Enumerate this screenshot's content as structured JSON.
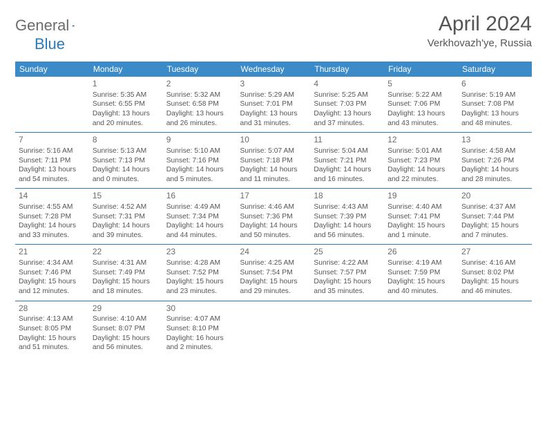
{
  "logo": {
    "text1": "General",
    "text2": "Blue"
  },
  "title": "April 2024",
  "location": "Verkhovazh'ye, Russia",
  "header_bg": "#3b8bc9",
  "divider_color": "#2a7ab8",
  "dow": [
    "Sunday",
    "Monday",
    "Tuesday",
    "Wednesday",
    "Thursday",
    "Friday",
    "Saturday"
  ],
  "weeks": [
    [
      {
        "n": "",
        "l": []
      },
      {
        "n": "1",
        "l": [
          "Sunrise: 5:35 AM",
          "Sunset: 6:55 PM",
          "Daylight: 13 hours",
          "and 20 minutes."
        ]
      },
      {
        "n": "2",
        "l": [
          "Sunrise: 5:32 AM",
          "Sunset: 6:58 PM",
          "Daylight: 13 hours",
          "and 26 minutes."
        ]
      },
      {
        "n": "3",
        "l": [
          "Sunrise: 5:29 AM",
          "Sunset: 7:01 PM",
          "Daylight: 13 hours",
          "and 31 minutes."
        ]
      },
      {
        "n": "4",
        "l": [
          "Sunrise: 5:25 AM",
          "Sunset: 7:03 PM",
          "Daylight: 13 hours",
          "and 37 minutes."
        ]
      },
      {
        "n": "5",
        "l": [
          "Sunrise: 5:22 AM",
          "Sunset: 7:06 PM",
          "Daylight: 13 hours",
          "and 43 minutes."
        ]
      },
      {
        "n": "6",
        "l": [
          "Sunrise: 5:19 AM",
          "Sunset: 7:08 PM",
          "Daylight: 13 hours",
          "and 48 minutes."
        ]
      }
    ],
    [
      {
        "n": "7",
        "l": [
          "Sunrise: 5:16 AM",
          "Sunset: 7:11 PM",
          "Daylight: 13 hours",
          "and 54 minutes."
        ]
      },
      {
        "n": "8",
        "l": [
          "Sunrise: 5:13 AM",
          "Sunset: 7:13 PM",
          "Daylight: 14 hours",
          "and 0 minutes."
        ]
      },
      {
        "n": "9",
        "l": [
          "Sunrise: 5:10 AM",
          "Sunset: 7:16 PM",
          "Daylight: 14 hours",
          "and 5 minutes."
        ]
      },
      {
        "n": "10",
        "l": [
          "Sunrise: 5:07 AM",
          "Sunset: 7:18 PM",
          "Daylight: 14 hours",
          "and 11 minutes."
        ]
      },
      {
        "n": "11",
        "l": [
          "Sunrise: 5:04 AM",
          "Sunset: 7:21 PM",
          "Daylight: 14 hours",
          "and 16 minutes."
        ]
      },
      {
        "n": "12",
        "l": [
          "Sunrise: 5:01 AM",
          "Sunset: 7:23 PM",
          "Daylight: 14 hours",
          "and 22 minutes."
        ]
      },
      {
        "n": "13",
        "l": [
          "Sunrise: 4:58 AM",
          "Sunset: 7:26 PM",
          "Daylight: 14 hours",
          "and 28 minutes."
        ]
      }
    ],
    [
      {
        "n": "14",
        "l": [
          "Sunrise: 4:55 AM",
          "Sunset: 7:28 PM",
          "Daylight: 14 hours",
          "and 33 minutes."
        ]
      },
      {
        "n": "15",
        "l": [
          "Sunrise: 4:52 AM",
          "Sunset: 7:31 PM",
          "Daylight: 14 hours",
          "and 39 minutes."
        ]
      },
      {
        "n": "16",
        "l": [
          "Sunrise: 4:49 AM",
          "Sunset: 7:34 PM",
          "Daylight: 14 hours",
          "and 44 minutes."
        ]
      },
      {
        "n": "17",
        "l": [
          "Sunrise: 4:46 AM",
          "Sunset: 7:36 PM",
          "Daylight: 14 hours",
          "and 50 minutes."
        ]
      },
      {
        "n": "18",
        "l": [
          "Sunrise: 4:43 AM",
          "Sunset: 7:39 PM",
          "Daylight: 14 hours",
          "and 56 minutes."
        ]
      },
      {
        "n": "19",
        "l": [
          "Sunrise: 4:40 AM",
          "Sunset: 7:41 PM",
          "Daylight: 15 hours",
          "and 1 minute."
        ]
      },
      {
        "n": "20",
        "l": [
          "Sunrise: 4:37 AM",
          "Sunset: 7:44 PM",
          "Daylight: 15 hours",
          "and 7 minutes."
        ]
      }
    ],
    [
      {
        "n": "21",
        "l": [
          "Sunrise: 4:34 AM",
          "Sunset: 7:46 PM",
          "Daylight: 15 hours",
          "and 12 minutes."
        ]
      },
      {
        "n": "22",
        "l": [
          "Sunrise: 4:31 AM",
          "Sunset: 7:49 PM",
          "Daylight: 15 hours",
          "and 18 minutes."
        ]
      },
      {
        "n": "23",
        "l": [
          "Sunrise: 4:28 AM",
          "Sunset: 7:52 PM",
          "Daylight: 15 hours",
          "and 23 minutes."
        ]
      },
      {
        "n": "24",
        "l": [
          "Sunrise: 4:25 AM",
          "Sunset: 7:54 PM",
          "Daylight: 15 hours",
          "and 29 minutes."
        ]
      },
      {
        "n": "25",
        "l": [
          "Sunrise: 4:22 AM",
          "Sunset: 7:57 PM",
          "Daylight: 15 hours",
          "and 35 minutes."
        ]
      },
      {
        "n": "26",
        "l": [
          "Sunrise: 4:19 AM",
          "Sunset: 7:59 PM",
          "Daylight: 15 hours",
          "and 40 minutes."
        ]
      },
      {
        "n": "27",
        "l": [
          "Sunrise: 4:16 AM",
          "Sunset: 8:02 PM",
          "Daylight: 15 hours",
          "and 46 minutes."
        ]
      }
    ],
    [
      {
        "n": "28",
        "l": [
          "Sunrise: 4:13 AM",
          "Sunset: 8:05 PM",
          "Daylight: 15 hours",
          "and 51 minutes."
        ]
      },
      {
        "n": "29",
        "l": [
          "Sunrise: 4:10 AM",
          "Sunset: 8:07 PM",
          "Daylight: 15 hours",
          "and 56 minutes."
        ]
      },
      {
        "n": "30",
        "l": [
          "Sunrise: 4:07 AM",
          "Sunset: 8:10 PM",
          "Daylight: 16 hours",
          "and 2 minutes."
        ]
      },
      {
        "n": "",
        "l": []
      },
      {
        "n": "",
        "l": []
      },
      {
        "n": "",
        "l": []
      },
      {
        "n": "",
        "l": []
      }
    ]
  ]
}
